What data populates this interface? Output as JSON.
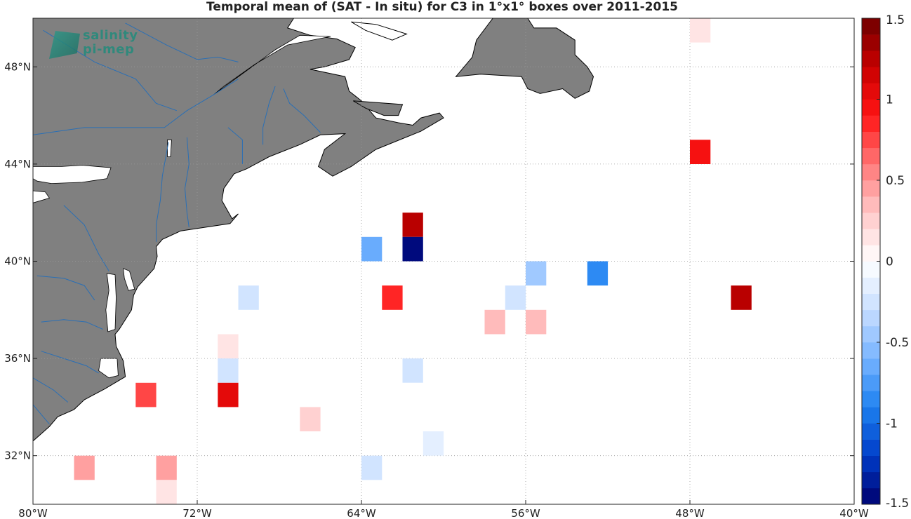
{
  "title": "Temporal mean of (SAT - In situ) for C3 in 1°x1° boxes over 2011-2015",
  "logo": {
    "line1": "salinity",
    "line2": "pi-mep"
  },
  "map": {
    "lon_range": [
      -80,
      -40
    ],
    "lat_range": [
      30,
      50
    ],
    "x_ticks": [
      {
        "lon": -80,
        "label": "80°W"
      },
      {
        "lon": -72,
        "label": "72°W"
      },
      {
        "lon": -64,
        "label": "64°W"
      },
      {
        "lon": -56,
        "label": "56°W"
      },
      {
        "lon": -48,
        "label": "48°W"
      },
      {
        "lon": -40,
        "label": "40°W"
      }
    ],
    "y_ticks": [
      {
        "lat": 32,
        "label": "32°N"
      },
      {
        "lat": 36,
        "label": "36°N"
      },
      {
        "lat": 40,
        "label": "40°N"
      },
      {
        "lat": 44,
        "label": "44°N"
      },
      {
        "lat": 48,
        "label": "48°N"
      }
    ],
    "grid": true,
    "land_color": "#808080",
    "river_color": "#2a6fb5"
  },
  "colorbar": {
    "range": [
      -1.5,
      1.5
    ],
    "levels": 30,
    "ticks": [
      {
        "value": 1.5,
        "label": "1.5"
      },
      {
        "value": 1,
        "label": "1"
      },
      {
        "value": 0.5,
        "label": "0.5"
      },
      {
        "value": 0,
        "label": "0"
      },
      {
        "value": -0.5,
        "label": "-0.5"
      },
      {
        "value": -1,
        "label": "-1"
      },
      {
        "value": -1.5,
        "label": "-1.5"
      }
    ]
  },
  "chart_data": {
    "type": "heatmap",
    "title": "Temporal mean of (SAT - In situ) for C3 in 1°x1° boxes over 2011-2015",
    "cell_size_deg": 1,
    "cells": [
      {
        "lon0": -48,
        "lat0": 49,
        "value": 0.15
      },
      {
        "lon0": -48,
        "lat0": 44,
        "value": 0.95
      },
      {
        "lon0": -62,
        "lat0": 41,
        "value": 1.25
      },
      {
        "lon0": -64,
        "lat0": 40,
        "value": -0.65
      },
      {
        "lon0": -62,
        "lat0": 40,
        "value": -1.45
      },
      {
        "lon0": -56,
        "lat0": 39,
        "value": -0.5
      },
      {
        "lon0": -53,
        "lat0": 39,
        "value": -0.85
      },
      {
        "lon0": -70,
        "lat0": 38,
        "value": -0.25
      },
      {
        "lon0": -63,
        "lat0": 38,
        "value": 0.85
      },
      {
        "lon0": -57,
        "lat0": 38,
        "value": -0.25
      },
      {
        "lon0": -46,
        "lat0": 38,
        "value": 1.25
      },
      {
        "lon0": -58,
        "lat0": 37,
        "value": 0.3
      },
      {
        "lon0": -56,
        "lat0": 37,
        "value": 0.3
      },
      {
        "lon0": -71,
        "lat0": 36,
        "value": 0.15
      },
      {
        "lon0": -71,
        "lat0": 35,
        "value": -0.25
      },
      {
        "lon0": -62,
        "lat0": 35,
        "value": -0.25
      },
      {
        "lon0": -75,
        "lat0": 34,
        "value": 0.75
      },
      {
        "lon0": -71,
        "lat0": 34,
        "value": 1.05
      },
      {
        "lon0": -67,
        "lat0": 33,
        "value": 0.25
      },
      {
        "lon0": -61,
        "lat0": 32,
        "value": -0.15
      },
      {
        "lon0": -78,
        "lat0": 31,
        "value": 0.45
      },
      {
        "lon0": -74,
        "lat0": 31,
        "value": 0.45
      },
      {
        "lon0": -64,
        "lat0": 31,
        "value": -0.25
      },
      {
        "lon0": -74,
        "lat0": 30,
        "value": 0.15
      }
    ]
  }
}
